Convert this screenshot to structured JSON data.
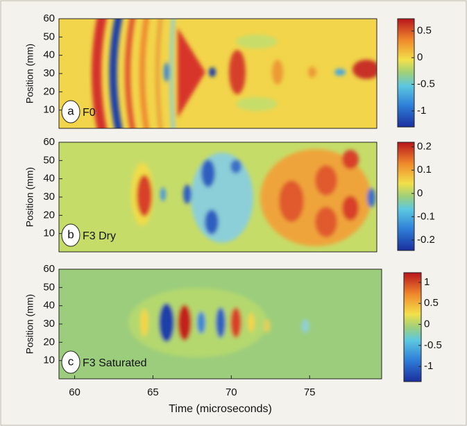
{
  "chart_data": [
    {
      "type": "heatmap",
      "label": "a",
      "title": "F0",
      "ylabel": "Position (mm)",
      "xlim": [
        59,
        79.6
      ],
      "ylim": [
        0,
        60
      ],
      "yticks": [
        10,
        20,
        30,
        40,
        50,
        60
      ],
      "colorbar": {
        "lim": [
          -1.3,
          0.73
        ],
        "ticks": [
          -1,
          -0.5,
          0,
          0.5
        ]
      }
    },
    {
      "type": "heatmap",
      "label": "b",
      "title": "F3 Dry",
      "ylabel": "Position (mm)",
      "xlim": [
        59,
        79.6
      ],
      "ylim": [
        0,
        60
      ],
      "yticks": [
        10,
        20,
        30,
        40,
        50,
        60
      ],
      "colorbar": {
        "lim": [
          -0.245,
          0.22
        ],
        "ticks": [
          -0.2,
          -0.1,
          0,
          0.1,
          0.2
        ]
      }
    },
    {
      "type": "heatmap",
      "label": "c",
      "title": "F3 Saturated",
      "ylabel": "Position (mm)",
      "xlabel": "Time (microseconds)",
      "xlim": [
        59,
        79.6
      ],
      "ylim": [
        0,
        60
      ],
      "yticks": [
        10,
        20,
        30,
        40,
        50,
        60
      ],
      "xticks": [
        60,
        65,
        70,
        75
      ],
      "colorbar": {
        "lim": [
          -1.36,
          1.23
        ],
        "ticks": [
          -1,
          -0.5,
          0,
          0.5,
          1
        ]
      }
    }
  ]
}
